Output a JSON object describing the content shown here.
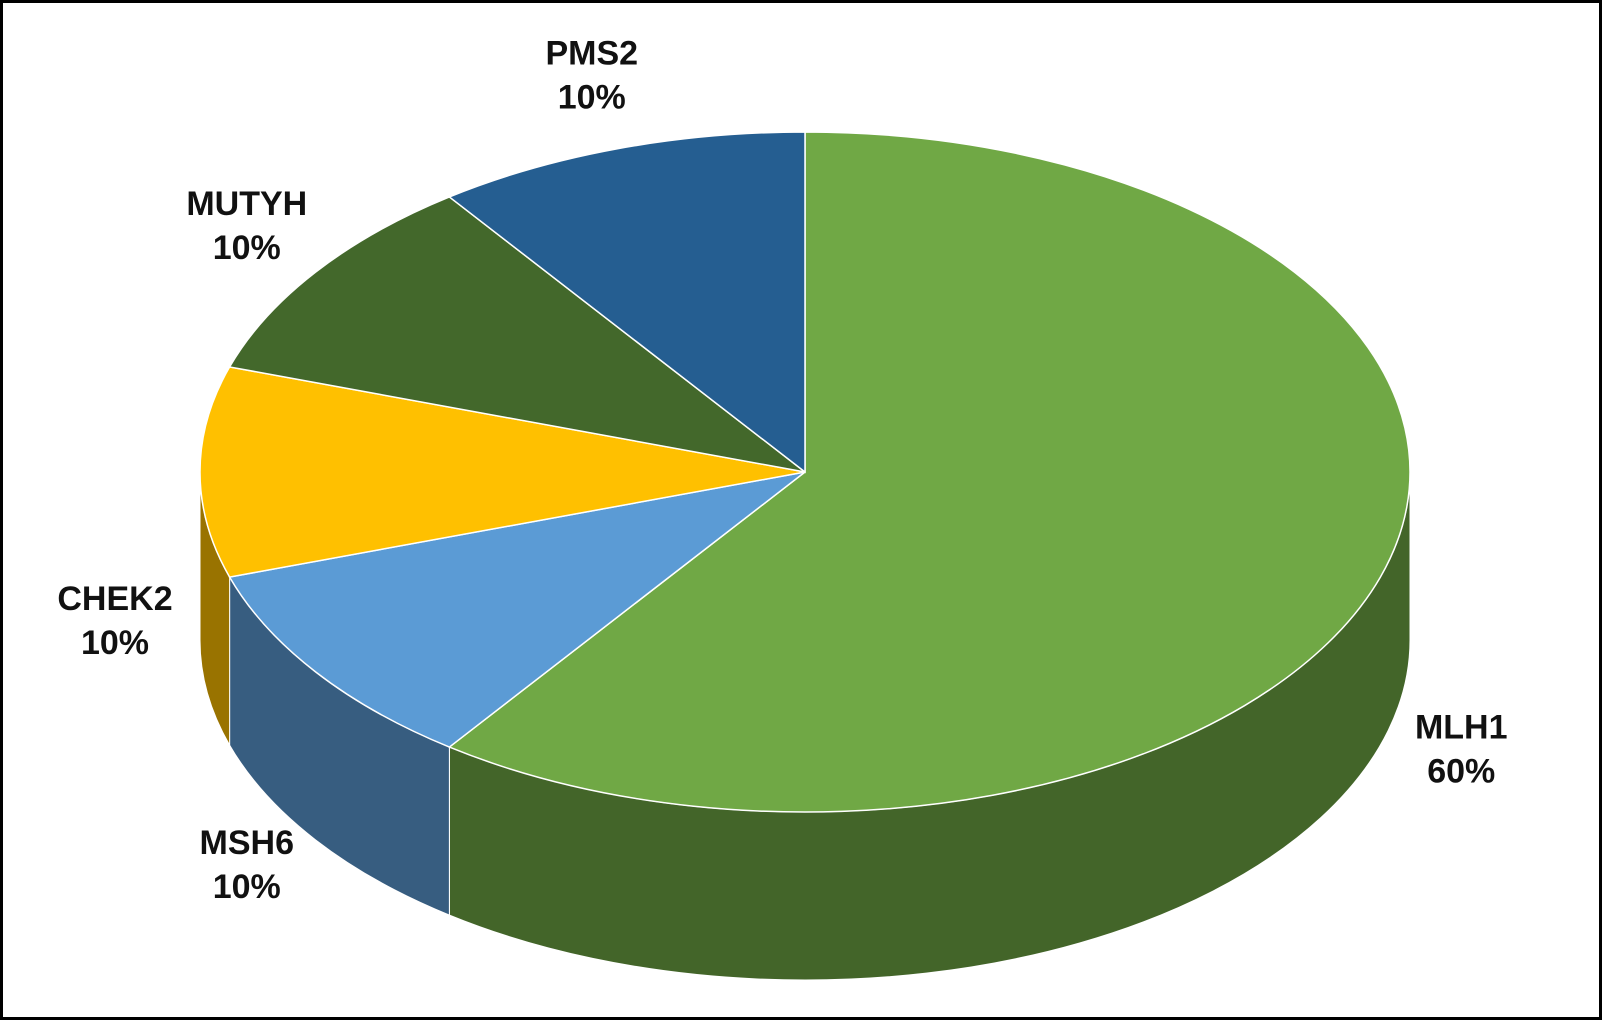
{
  "chart_data": {
    "type": "pie",
    "categories": [
      "MLH1",
      "MSH6",
      "CHEK2",
      "MUTYH",
      "PMS2"
    ],
    "values": [
      60,
      10,
      10,
      10,
      10
    ],
    "value_labels": [
      "60%",
      "10%",
      "10%",
      "10%",
      "10%"
    ],
    "colors": [
      "#70a845",
      "#5b9bd5",
      "#ffc000",
      "#43682b",
      "#255e91"
    ]
  }
}
